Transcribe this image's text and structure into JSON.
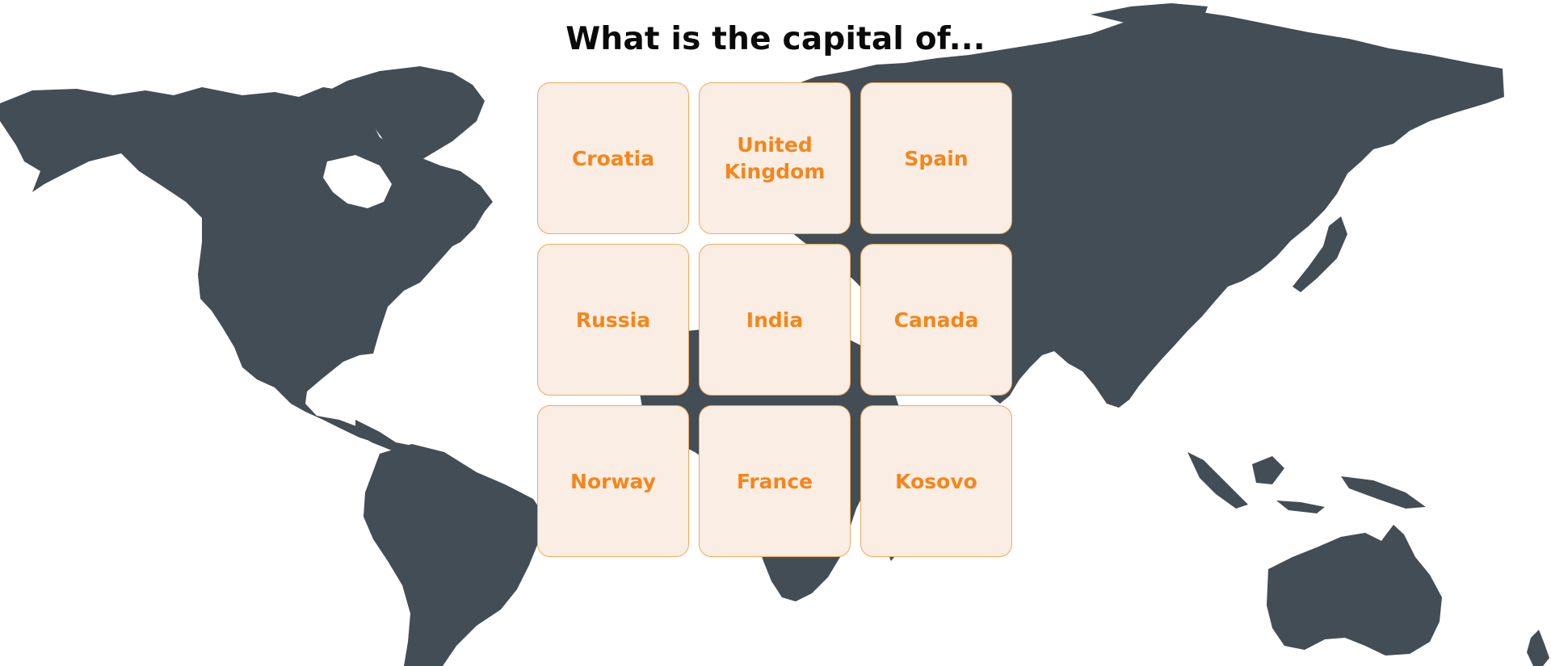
{
  "quiz": {
    "question": "What is the capital of...",
    "options": [
      {
        "label": "Croatia"
      },
      {
        "label": "United Kingdom"
      },
      {
        "label": "Spain"
      },
      {
        "label": "Russia"
      },
      {
        "label": "India"
      },
      {
        "label": "Canada"
      },
      {
        "label": "Norway"
      },
      {
        "label": "France"
      },
      {
        "label": "Kosovo"
      }
    ]
  },
  "colors": {
    "map": "#434d55",
    "tile_background": "#f9ede4",
    "tile_border": "#f3a95a",
    "tile_text": "#f5861a",
    "title_text": "#0a0a0a"
  }
}
